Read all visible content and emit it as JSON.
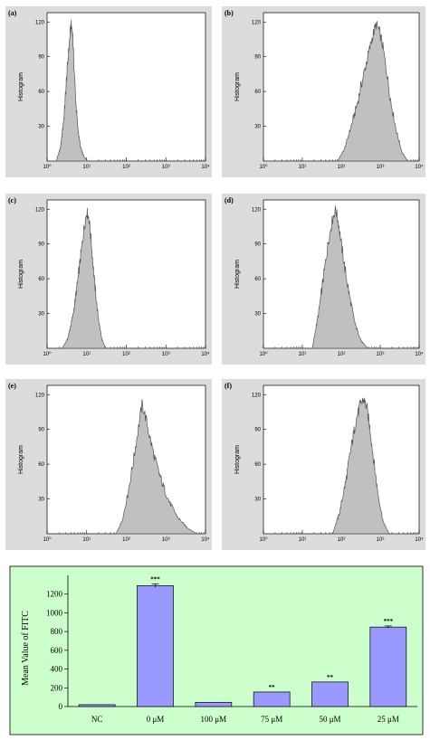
{
  "chart_data": [
    {
      "type": "area",
      "panel": "(a)",
      "ylabel": "Histogram",
      "xscale": "log",
      "xlim": [
        1,
        10000
      ],
      "ylim": [
        0,
        128
      ],
      "yticks": [
        30,
        60,
        90,
        120
      ],
      "xtick_labels": [
        "10⁰",
        "10¹",
        "10²",
        "10³",
        "10⁴"
      ],
      "x": [
        1.7,
        2.2,
        2.7,
        3.2,
        3.6,
        4.0,
        4.4,
        4.8,
        5.3,
        6.0,
        7.0,
        8.5,
        10.5
      ],
      "y": [
        0,
        12,
        40,
        78,
        100,
        118,
        112,
        82,
        52,
        28,
        12,
        4,
        0
      ]
    },
    {
      "type": "area",
      "panel": "(b)",
      "ylabel": "Histogram",
      "xscale": "log",
      "xlim": [
        1,
        10000
      ],
      "ylim": [
        0,
        128
      ],
      "yticks": [
        30,
        60,
        90,
        120
      ],
      "xtick_labels": [
        "10⁰",
        "10¹",
        "10²",
        "10³",
        "10⁴"
      ],
      "x": [
        80,
        120,
        180,
        260,
        360,
        480,
        620,
        780,
        950,
        1150,
        1450,
        1900,
        2600,
        3600,
        5000
      ],
      "y": [
        0,
        10,
        30,
        50,
        72,
        90,
        106,
        118,
        112,
        100,
        78,
        50,
        26,
        8,
        0
      ]
    },
    {
      "type": "area",
      "panel": "(c)",
      "ylabel": "Histogram",
      "xscale": "log",
      "xlim": [
        1,
        10000
      ],
      "ylim": [
        0,
        128
      ],
      "yticks": [
        30,
        60,
        90,
        120
      ],
      "xtick_labels": [
        "10⁰",
        "10¹",
        "10²",
        "10³",
        "10⁴"
      ],
      "x": [
        2.4,
        3.3,
        4.5,
        5.8,
        7.2,
        8.6,
        10.0,
        11.5,
        13.2,
        15.5,
        19,
        24,
        30
      ],
      "y": [
        0,
        8,
        28,
        55,
        82,
        104,
        118,
        112,
        90,
        60,
        30,
        8,
        0
      ]
    },
    {
      "type": "area",
      "panel": "(d)",
      "ylabel": "Histogram",
      "xscale": "log",
      "xlim": [
        1,
        10000
      ],
      "ylim": [
        0,
        128
      ],
      "yticks": [
        30,
        60,
        90,
        120
      ],
      "xtick_labels": [
        "10⁰",
        "10¹",
        "10²",
        "10³",
        "10⁴"
      ],
      "x": [
        18,
        26,
        36,
        48,
        60,
        72,
        85,
        100,
        125,
        165,
        230,
        330,
        480
      ],
      "y": [
        0,
        30,
        65,
        95,
        112,
        120,
        108,
        90,
        68,
        44,
        20,
        6,
        0
      ]
    },
    {
      "type": "area",
      "panel": "(e)",
      "ylabel": "Histogram",
      "xscale": "log",
      "xlim": [
        1,
        10000
      ],
      "ylim": [
        0,
        128
      ],
      "yticks": [
        30,
        60,
        90,
        120
      ],
      "xtick_labels": [
        "10⁰",
        "10¹",
        "10²",
        "10³",
        "10⁴"
      ],
      "x": [
        55,
        80,
        110,
        150,
        200,
        250,
        310,
        400,
        550,
        800,
        1200,
        2000,
        3500,
        6000
      ],
      "y": [
        0,
        12,
        35,
        62,
        90,
        112,
        100,
        82,
        62,
        44,
        28,
        14,
        5,
        0
      ]
    },
    {
      "type": "area",
      "panel": "(f)",
      "ylabel": "Histogram",
      "xscale": "log",
      "xlim": [
        1,
        10000
      ],
      "ylim": [
        0,
        128
      ],
      "yticks": [
        30,
        60,
        90,
        120
      ],
      "xtick_labels": [
        "10⁰",
        "10¹",
        "10²",
        "10³",
        "10⁴"
      ],
      "x": [
        60,
        90,
        130,
        180,
        240,
        310,
        380,
        460,
        560,
        700,
        900,
        1200,
        1700
      ],
      "y": [
        0,
        18,
        45,
        75,
        98,
        112,
        116,
        108,
        88,
        60,
        32,
        10,
        0
      ]
    },
    {
      "type": "bar",
      "ylabel": "Mean Value of FITC",
      "ylim": [
        0,
        1400
      ],
      "yticks": [
        0,
        200,
        400,
        600,
        800,
        1000,
        1200
      ],
      "categories": [
        "NC",
        "0 μM",
        "100 μM",
        "75 μM",
        "50 μM",
        "25 μM"
      ],
      "values": [
        20,
        1290,
        45,
        155,
        262,
        848
      ],
      "errors": [
        0,
        18,
        0,
        0,
        0,
        12
      ],
      "annotations": [
        "",
        "***",
        "",
        "**",
        "**",
        "***"
      ],
      "colors": {
        "bar": "#9999ff",
        "bar_edge": "#000000",
        "background": "#ccffcc",
        "histogram_fill": "#c0c0c0",
        "panel_bg": "#dcdcdc"
      }
    }
  ]
}
